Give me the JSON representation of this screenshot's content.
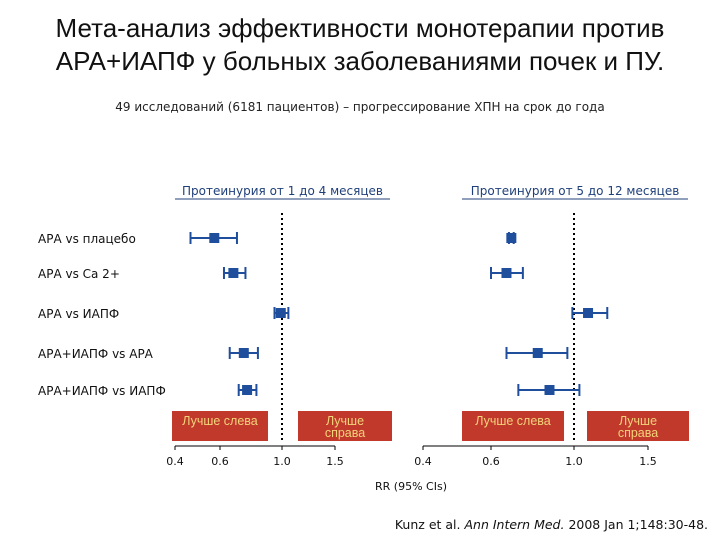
{
  "title_line1": "Мета-анализ эффективности монотерапии против",
  "title_line2": "АРА+ИАПФ у больных заболеваниями почек и ПУ.",
  "subtitle": "49 исследований (6181 пациентов) – прогрессирование ХПН на срок до года",
  "citation": {
    "authors": "Kunz et al. ",
    "journal": "Ann Intern Med.",
    "details": " 2008 Jan 1;148:30-48."
  },
  "colors": {
    "marker": "#1f4e9c",
    "box_fill": "#c0392b",
    "box_text": "#f3d37a",
    "reference_line": "#000000"
  },
  "chart_data": [
    {
      "type": "forest",
      "title": "Протеинурия от 1 до 4 месяцев",
      "xlabel": "RR (95% CIs)",
      "x_ticks": [
        "0.4",
        "0.6",
        "1.0",
        "1.5"
      ],
      "reference_value": 1.0,
      "boxes": [
        "Лучше слева",
        "Лучше справа"
      ],
      "rows": [
        {
          "label": "АРА vs плацебо",
          "estimate": 0.57,
          "lo": 0.46,
          "hi": 0.69
        },
        {
          "label": "АРА vs Ca 2+",
          "estimate": 0.67,
          "lo": 0.62,
          "hi": 0.74
        },
        {
          "label": "АРА vs ИАПФ",
          "estimate": 0.99,
          "lo": 0.94,
          "hi": 1.05
        },
        {
          "label": "АРА+ИАПФ vs АРА",
          "estimate": 0.73,
          "lo": 0.65,
          "hi": 0.82
        },
        {
          "label": "АРА+ИАПФ vs ИАПФ",
          "estimate": 0.75,
          "lo": 0.7,
          "hi": 0.81
        }
      ]
    },
    {
      "type": "forest",
      "title": "Протеинурия от 5 до 12 месяцев",
      "xlabel": "RR (95% CIs)",
      "x_ticks": [
        "0.4",
        "0.6",
        "1.0",
        "1.5"
      ],
      "reference_value": 1.0,
      "boxes": [
        "Лучше слева",
        "Лучше справа"
      ],
      "rows": [
        {
          "label": "АРА vs плацебо",
          "estimate": 0.68,
          "lo": 0.67,
          "hi": 0.69
        },
        {
          "label": "АРА vs Ca 2+",
          "estimate": 0.66,
          "lo": 0.6,
          "hi": 0.73
        },
        {
          "label": "АРА vs ИАПФ",
          "estimate": 1.08,
          "lo": 0.99,
          "hi": 1.2
        },
        {
          "label": "АРА+ИАПФ vs АРА",
          "estimate": 0.8,
          "lo": 0.66,
          "hi": 0.96
        },
        {
          "label": "АРА+ИАПФ vs ИАПФ",
          "estimate": 0.86,
          "lo": 0.71,
          "hi": 1.03
        }
      ]
    }
  ]
}
